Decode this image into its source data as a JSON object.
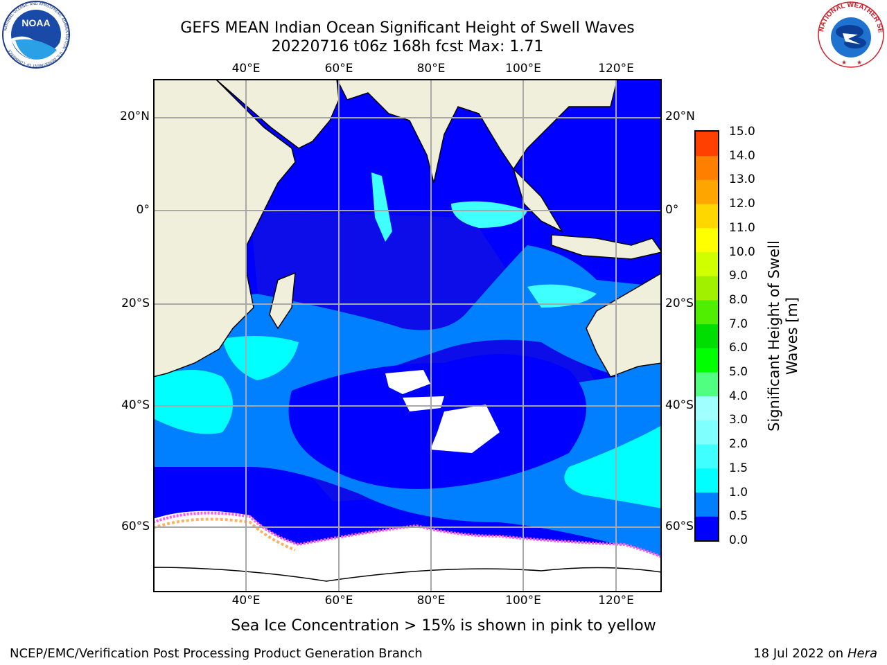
{
  "title": {
    "line1": "GEFS MEAN Indian Ocean Significant Height of Swell Waves",
    "line2": "20220716 t06z 168h fcst   Max: 1.71"
  },
  "logos": {
    "noaa": "NOAA",
    "noaa_ring": "NATIONAL OCEANIC AND ATMOSPHERIC ADMINISTRATION · U.S. DEPARTMENT OF COMMERCE",
    "nws_ring": "NATIONAL WEATHER SERVICE"
  },
  "map": {
    "lon_labels": [
      "40°E",
      "60°E",
      "80°E",
      "100°E",
      "120°E"
    ],
    "lat_labels": [
      "20°N",
      "0°",
      "20°S",
      "40°S",
      "60°S"
    ],
    "colors": {
      "land": "#efefdc",
      "ice": "#ffffff",
      "grid": "#a8a8a8",
      "sea_0": "#0000ff",
      "sea_1": "#0d0dea",
      "sea_2": "#0080ff",
      "sea_3": "#00ffff",
      "ice_edge": [
        "#ff55ff",
        "#ffa0ff",
        "#ffb060",
        "#ffe040"
      ]
    }
  },
  "colorbar": {
    "title_line1": "Significant Height of Swell",
    "title_line2": "Waves [m]",
    "ticks": [
      "0.0",
      "0.5",
      "1.0",
      "1.5",
      "2.0",
      "3.0",
      "4.0",
      "5.0",
      "6.0",
      "7.0",
      "8.0",
      "9.0",
      "10.0",
      "11.0",
      "12.0",
      "13.0",
      "14.0",
      "15.0"
    ],
    "colors": [
      "#0000ff",
      "#0080ff",
      "#00ffff",
      "#40ffff",
      "#80ffff",
      "#a0ffff",
      "#50ff80",
      "#00ff00",
      "#00dd00",
      "#50ee00",
      "#a0f000",
      "#d0ff00",
      "#ffff00",
      "#ffd700",
      "#ffa500",
      "#ff8000",
      "#ff4000",
      "#ff1000",
      "#ff0000"
    ]
  },
  "caption": "Sea Ice Concentration > 15% is shown in pink to yellow",
  "footer": {
    "left": "NCEP/EMC/Verification Post Processing Product Generation Branch",
    "right_prefix": "18 Jul 2022 on ",
    "right_host": "Hera"
  }
}
